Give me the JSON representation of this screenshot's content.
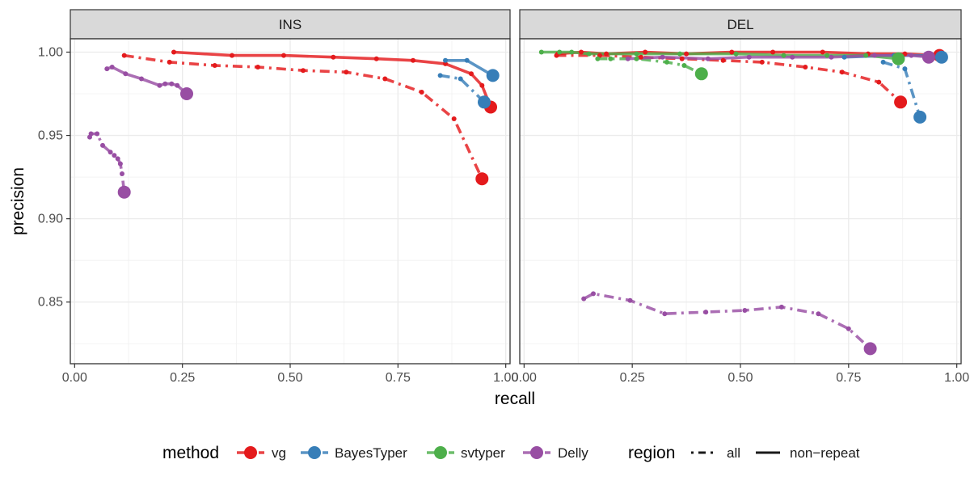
{
  "chart_data": {
    "type": "line",
    "xlabel": "recall",
    "ylabel": "precision",
    "xlim": [
      -0.01,
      1.01
    ],
    "ylim": [
      0.813,
      1.008
    ],
    "x_ticks": [
      "0.00",
      "0.25",
      "0.50",
      "0.75",
      "1.00"
    ],
    "y_ticks": [
      "0.85",
      "0.90",
      "0.95",
      "1.00"
    ],
    "grid": true,
    "legend_position": "bottom",
    "legend": {
      "method_title": "method",
      "region_title": "region",
      "methods": [
        {
          "name": "vg",
          "color": "#e41a1c"
        },
        {
          "name": "BayesTyper",
          "color": "#377eb8"
        },
        {
          "name": "svtyper",
          "color": "#4daf4a"
        },
        {
          "name": "Delly",
          "color": "#984ea3"
        }
      ],
      "regions": [
        {
          "name": "all",
          "dash": "dashdot"
        },
        {
          "name": "non−repeat",
          "dash": "solid"
        }
      ]
    },
    "panels": [
      {
        "label": "INS",
        "series": [
          {
            "method": "vg",
            "region": "all",
            "points": [
              [
                0.115,
                0.998
              ],
              [
                0.22,
                0.994
              ],
              [
                0.325,
                0.992
              ],
              [
                0.425,
                0.991
              ],
              [
                0.53,
                0.989
              ],
              [
                0.63,
                0.988
              ],
              [
                0.72,
                0.984
              ],
              [
                0.805,
                0.976
              ],
              [
                0.88,
                0.96
              ],
              [
                0.945,
                0.924
              ]
            ]
          },
          {
            "method": "vg",
            "region": "non-repeat",
            "points": [
              [
                0.23,
                1.0
              ],
              [
                0.365,
                0.998
              ],
              [
                0.485,
                0.998
              ],
              [
                0.6,
                0.997
              ],
              [
                0.7,
                0.996
              ],
              [
                0.785,
                0.995
              ],
              [
                0.86,
                0.993
              ],
              [
                0.92,
                0.987
              ],
              [
                0.945,
                0.98
              ],
              [
                0.965,
                0.967
              ]
            ]
          },
          {
            "method": "BayesTyper",
            "region": "all",
            "points": [
              [
                0.848,
                0.986
              ],
              [
                0.895,
                0.984
              ],
              [
                0.95,
                0.97
              ]
            ]
          },
          {
            "method": "BayesTyper",
            "region": "non-repeat",
            "points": [
              [
                0.86,
                0.995
              ],
              [
                0.91,
                0.995
              ],
              [
                0.97,
                0.986
              ]
            ]
          },
          {
            "method": "Delly",
            "region": "all",
            "points": [
              [
                0.035,
                0.949
              ],
              [
                0.038,
                0.951
              ],
              [
                0.052,
                0.951
              ],
              [
                0.065,
                0.944
              ],
              [
                0.083,
                0.94
              ],
              [
                0.092,
                0.938
              ],
              [
                0.1,
                0.936
              ],
              [
                0.106,
                0.933
              ],
              [
                0.11,
                0.927
              ],
              [
                0.115,
                0.916
              ]
            ]
          },
          {
            "method": "Delly",
            "region": "non-repeat",
            "points": [
              [
                0.075,
                0.99
              ],
              [
                0.087,
                0.991
              ],
              [
                0.118,
                0.987
              ],
              [
                0.155,
                0.984
              ],
              [
                0.197,
                0.98
              ],
              [
                0.21,
                0.981
              ],
              [
                0.225,
                0.981
              ],
              [
                0.238,
                0.98
              ],
              [
                0.26,
                0.975
              ]
            ]
          }
        ]
      },
      {
        "label": "DEL",
        "series": [
          {
            "method": "vg",
            "region": "all",
            "points": [
              [
                0.075,
                0.998
              ],
              [
                0.175,
                0.998
              ],
              [
                0.27,
                0.997
              ],
              [
                0.365,
                0.996
              ],
              [
                0.46,
                0.995
              ],
              [
                0.55,
                0.994
              ],
              [
                0.65,
                0.991
              ],
              [
                0.735,
                0.988
              ],
              [
                0.82,
                0.982
              ],
              [
                0.87,
                0.97
              ]
            ]
          },
          {
            "method": "vg",
            "region": "non-repeat",
            "points": [
              [
                0.078,
                0.999
              ],
              [
                0.132,
                1.0
              ],
              [
                0.19,
                0.999
              ],
              [
                0.28,
                1.0
              ],
              [
                0.375,
                0.999
              ],
              [
                0.48,
                1.0
              ],
              [
                0.575,
                1.0
              ],
              [
                0.69,
                1.0
              ],
              [
                0.795,
                0.999
              ],
              [
                0.88,
                0.999
              ],
              [
                0.96,
                0.998
              ]
            ]
          },
          {
            "method": "BayesTyper",
            "region": "all",
            "points": [
              [
                0.83,
                0.994
              ],
              [
                0.88,
                0.99
              ],
              [
                0.915,
                0.961
              ]
            ]
          },
          {
            "method": "BayesTyper",
            "region": "non-repeat",
            "points": [
              [
                0.74,
                0.997
              ],
              [
                0.855,
                0.998
              ],
              [
                0.93,
                0.998
              ],
              [
                0.965,
                0.997
              ]
            ]
          },
          {
            "method": "svtyper",
            "region": "all",
            "points": [
              [
                0.17,
                0.996
              ],
              [
                0.2,
                0.996
              ],
              [
                0.26,
                0.996
              ],
              [
                0.33,
                0.994
              ],
              [
                0.37,
                0.992
              ],
              [
                0.41,
                0.987
              ]
            ]
          },
          {
            "method": "svtyper",
            "region": "non-repeat",
            "points": [
              [
                0.04,
                1.0
              ],
              [
                0.082,
                1.0
              ],
              [
                0.11,
                1.0
              ],
              [
                0.15,
                0.999
              ],
              [
                0.26,
                0.999
              ],
              [
                0.36,
                0.999
              ],
              [
                0.49,
                0.999
              ],
              [
                0.6,
                0.998
              ],
              [
                0.7,
                0.998
              ],
              [
                0.79,
                0.998
              ],
              [
                0.865,
                0.996
              ]
            ]
          },
          {
            "method": "Delly",
            "region": "all",
            "points": [
              [
                0.138,
                0.852
              ],
              [
                0.16,
                0.855
              ],
              [
                0.245,
                0.851
              ],
              [
                0.325,
                0.843
              ],
              [
                0.42,
                0.844
              ],
              [
                0.51,
                0.845
              ],
              [
                0.595,
                0.847
              ],
              [
                0.68,
                0.843
              ],
              [
                0.75,
                0.834
              ],
              [
                0.8,
                0.822
              ]
            ]
          },
          {
            "method": "Delly",
            "region": "non-repeat",
            "points": [
              [
                0.24,
                0.996
              ],
              [
                0.32,
                0.997
              ],
              [
                0.425,
                0.996
              ],
              [
                0.52,
                0.997
              ],
              [
                0.62,
                0.997
              ],
              [
                0.71,
                0.997
              ],
              [
                0.81,
                0.998
              ],
              [
                0.895,
                0.998
              ],
              [
                0.935,
                0.997
              ]
            ]
          }
        ]
      }
    ]
  }
}
